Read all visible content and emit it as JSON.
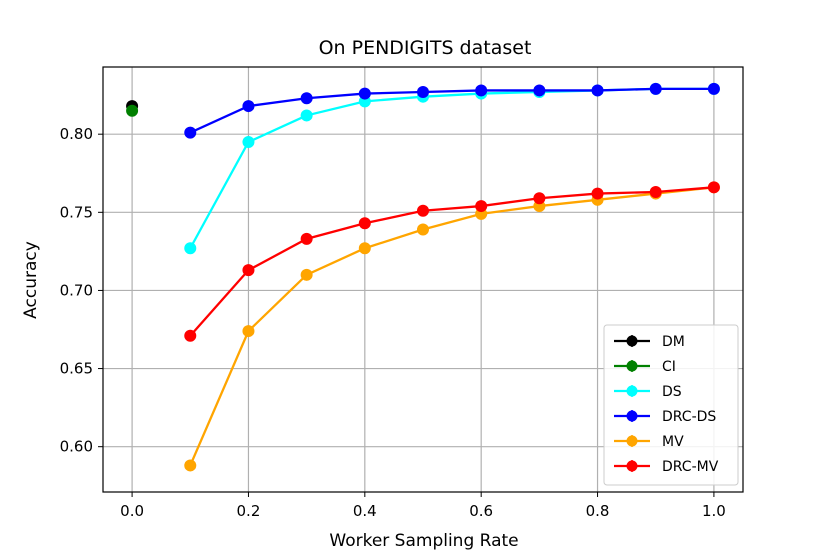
{
  "chart_data": {
    "type": "line",
    "title": "On PENDIGITS dataset",
    "xlabel": "Worker Sampling Rate",
    "ylabel": "Accuracy",
    "xlim": [
      -0.05,
      1.05
    ],
    "ylim": [
      0.571,
      0.843
    ],
    "xticks": [
      0.0,
      0.2,
      0.4,
      0.6,
      0.8,
      1.0
    ],
    "xtick_labels": [
      "0.0",
      "0.2",
      "0.4",
      "0.6",
      "0.8",
      "1.0"
    ],
    "yticks": [
      0.6,
      0.65,
      0.7,
      0.75,
      0.8
    ],
    "ytick_labels": [
      "0.60",
      "0.65",
      "0.70",
      "0.75",
      "0.80"
    ],
    "grid": true,
    "legend_position": "lower-right",
    "series": [
      {
        "name": "DM",
        "color": "#000000",
        "x": [
          0.0
        ],
        "y": [
          0.818
        ]
      },
      {
        "name": "CI",
        "color": "#008000",
        "x": [
          0.0
        ],
        "y": [
          0.815
        ]
      },
      {
        "name": "DS",
        "color": "#00ffff",
        "x": [
          0.1,
          0.2,
          0.3,
          0.4,
          0.5,
          0.6,
          0.7,
          0.8,
          0.9,
          1.0
        ],
        "y": [
          0.727,
          0.795,
          0.812,
          0.821,
          0.824,
          0.826,
          0.827,
          0.828,
          0.829,
          0.829
        ]
      },
      {
        "name": "DRC-DS",
        "color": "#0000ff",
        "x": [
          0.1,
          0.2,
          0.3,
          0.4,
          0.5,
          0.6,
          0.7,
          0.8,
          0.9,
          1.0
        ],
        "y": [
          0.801,
          0.818,
          0.823,
          0.826,
          0.827,
          0.828,
          0.828,
          0.828,
          0.829,
          0.829
        ]
      },
      {
        "name": "MV",
        "color": "#ffa500",
        "x": [
          0.1,
          0.2,
          0.3,
          0.4,
          0.5,
          0.6,
          0.7,
          0.8,
          0.9,
          1.0
        ],
        "y": [
          0.588,
          0.674,
          0.71,
          0.727,
          0.739,
          0.749,
          0.754,
          0.758,
          0.762,
          0.766
        ]
      },
      {
        "name": "DRC-MV",
        "color": "#ff0000",
        "x": [
          0.1,
          0.2,
          0.3,
          0.4,
          0.5,
          0.6,
          0.7,
          0.8,
          0.9,
          1.0
        ],
        "y": [
          0.671,
          0.713,
          0.733,
          0.743,
          0.751,
          0.754,
          0.759,
          0.762,
          0.763,
          0.766
        ]
      }
    ]
  }
}
